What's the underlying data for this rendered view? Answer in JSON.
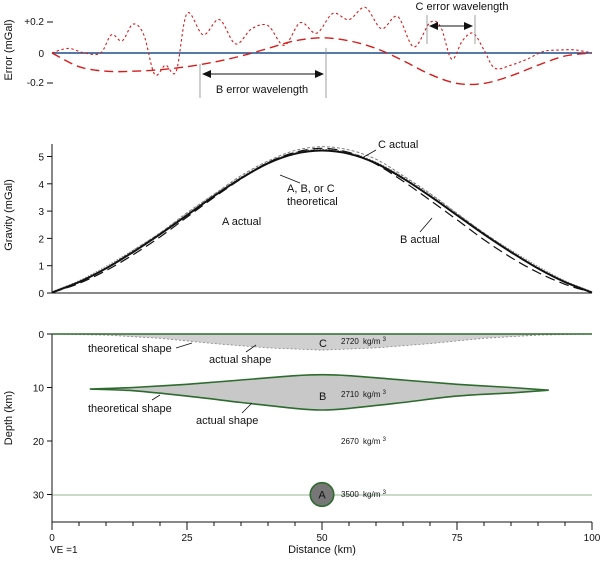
{
  "colors": {
    "error_b": "#d81b1b",
    "error_c": "#d81b1b",
    "zero_line": "#1f4e8c",
    "body_fill": "#c8c8c8",
    "body_outline": "#2e6b2e",
    "ball_fill": "#777777"
  },
  "chart_data": [
    {
      "type": "line",
      "panel": "error",
      "ylabel": "Error (mGal)",
      "yticks": [
        "+0.2",
        "0",
        "-0.2"
      ],
      "ylim": [
        -0.27,
        0.32
      ],
      "xlim": [
        0,
        100
      ],
      "series": [
        {
          "name": "B error",
          "style": "long-dash",
          "x": [
            0,
            5,
            10,
            15,
            20,
            25,
            30,
            35,
            40,
            45,
            50,
            55,
            60,
            65,
            70,
            75,
            80,
            85,
            90,
            95,
            100
          ],
          "y": [
            0,
            -0.09,
            -0.12,
            -0.12,
            -0.11,
            -0.09,
            -0.06,
            -0.02,
            0.03,
            0.08,
            0.1,
            0.08,
            0.03,
            -0.05,
            -0.14,
            -0.2,
            -0.2,
            -0.15,
            -0.08,
            -0.02,
            0
          ]
        },
        {
          "name": "C error",
          "style": "short-dash",
          "x": [
            0,
            3,
            6,
            9,
            11,
            13,
            15,
            17,
            19,
            21,
            23,
            25,
            28,
            31,
            34,
            37,
            40,
            43,
            46,
            49,
            52,
            55,
            58,
            61,
            64,
            67,
            70,
            72,
            74,
            76,
            78,
            80,
            82,
            85,
            88,
            91,
            94,
            97,
            100
          ],
          "y": [
            0,
            0.03,
            0,
            0,
            0.12,
            0.08,
            0.19,
            0.12,
            -0.14,
            -0.08,
            -0.12,
            0.26,
            0.12,
            0.22,
            0.06,
            0.16,
            0.18,
            0.05,
            0.2,
            0.13,
            0.26,
            0.22,
            0.3,
            0.16,
            0.24,
            0.04,
            0.2,
            0.17,
            -0.04,
            0.08,
            0.13,
            0.02,
            -0.1,
            -0.08,
            -0.04,
            0.01,
            0.02,
            0.02,
            0
          ]
        }
      ],
      "annotations": [
        {
          "text": "C error wavelength",
          "x_from": 70,
          "x_to": 79
        },
        {
          "text": "B error wavelength",
          "x_from": 27,
          "x_to": 51
        }
      ]
    },
    {
      "type": "line",
      "panel": "gravity",
      "ylabel": "Gravity (mGal)",
      "yticks": [
        0,
        1,
        2,
        3,
        4,
        5
      ],
      "ylim": [
        0,
        5.6
      ],
      "xlim": [
        0,
        100
      ],
      "series": [
        {
          "name": "A, B, or C theoretical",
          "style": "solid-thick",
          "x": [
            0,
            5,
            10,
            15,
            20,
            25,
            30,
            35,
            40,
            45,
            50,
            55,
            60,
            65,
            70,
            75,
            80,
            85,
            90,
            95,
            100
          ],
          "y": [
            0.02,
            0.4,
            0.9,
            1.5,
            2.15,
            2.85,
            3.55,
            4.2,
            4.75,
            5.1,
            5.22,
            5.1,
            4.75,
            4.2,
            3.55,
            2.85,
            2.15,
            1.5,
            0.9,
            0.4,
            0.02
          ]
        },
        {
          "name": "A actual",
          "style": "thin-dotted",
          "x": [
            0,
            5,
            10,
            15,
            20,
            25,
            30,
            35,
            40,
            45,
            50,
            55,
            60,
            65,
            70,
            75,
            80,
            85,
            90,
            95,
            100
          ],
          "y": [
            0.05,
            0.45,
            0.98,
            1.57,
            2.2,
            2.92,
            3.62,
            4.26,
            4.8,
            5.15,
            5.26,
            5.15,
            4.8,
            4.26,
            3.62,
            2.92,
            2.2,
            1.57,
            0.98,
            0.45,
            0.05
          ]
        },
        {
          "name": "B actual",
          "style": "long-dash",
          "x": [
            0,
            5,
            10,
            15,
            20,
            25,
            30,
            35,
            40,
            45,
            50,
            55,
            60,
            65,
            70,
            75,
            80,
            85,
            90,
            95,
            100
          ],
          "y": [
            0.02,
            0.35,
            0.82,
            1.4,
            2.05,
            2.78,
            3.5,
            4.18,
            4.78,
            5.15,
            5.3,
            5.15,
            4.72,
            4.1,
            3.4,
            2.68,
            1.95,
            1.3,
            0.75,
            0.32,
            0.02
          ]
        },
        {
          "name": "C actual",
          "style": "short-dash",
          "x": [
            0,
            5,
            10,
            15,
            20,
            25,
            30,
            35,
            40,
            45,
            50,
            55,
            60,
            65,
            70,
            75,
            80,
            85,
            90,
            95,
            100
          ],
          "y": [
            0.02,
            0.42,
            0.92,
            1.56,
            2.2,
            2.94,
            3.62,
            4.3,
            4.84,
            5.22,
            5.36,
            5.24,
            4.9,
            4.3,
            3.65,
            2.92,
            2.2,
            1.54,
            0.93,
            0.42,
            0.02
          ]
        }
      ],
      "labels": [
        "C actual",
        "A, B, or C",
        "theoretical",
        "A actual",
        "B actual"
      ]
    },
    {
      "type": "cross-section",
      "panel": "depth",
      "ylabel": "Depth (km)",
      "xlabel": "Distance (km)",
      "xticks": [
        0,
        25,
        50,
        75,
        100
      ],
      "yticks": [
        0,
        10,
        20,
        30
      ],
      "xlim": [
        0,
        100
      ],
      "ylim": [
        0,
        35
      ],
      "bodies": [
        {
          "id": "C",
          "density": "2720",
          "density_unit": "kg/m",
          "unit_exp": "3",
          "top_depth": 0,
          "x": [
            0,
            10,
            20,
            30,
            40,
            50,
            60,
            70,
            80,
            90,
            100
          ],
          "bottom_depth": [
            0,
            0.2,
            0.8,
            1.8,
            2.6,
            3.0,
            2.6,
            1.8,
            0.8,
            0.2,
            0
          ]
        },
        {
          "id": "B",
          "density": "2710",
          "density_unit": "kg/m",
          "unit_exp": "3",
          "x": [
            7,
            15,
            25,
            35,
            45,
            50,
            55,
            65,
            75,
            85,
            92
          ],
          "top_depth": [
            10.3,
            10.0,
            9.4,
            8.6,
            7.8,
            7.6,
            7.8,
            8.6,
            9.4,
            10.0,
            10.5
          ],
          "bottom_depth": [
            10.3,
            10.6,
            11.6,
            12.8,
            13.9,
            14.2,
            13.9,
            12.8,
            11.6,
            11.0,
            10.5
          ]
        },
        {
          "id": "A",
          "density": "3500",
          "density_unit": "kg/m",
          "unit_exp": "3",
          "center_x": 50,
          "center_depth": 30,
          "radius_km": 2.2
        }
      ],
      "background_density": "2670",
      "labels": {
        "theoretical_c": "theoretical shape",
        "actual_c": "actual shape",
        "theoretical_b": "theoretical shape",
        "actual_b": "actual shape"
      },
      "ve": "VE =1"
    }
  ]
}
